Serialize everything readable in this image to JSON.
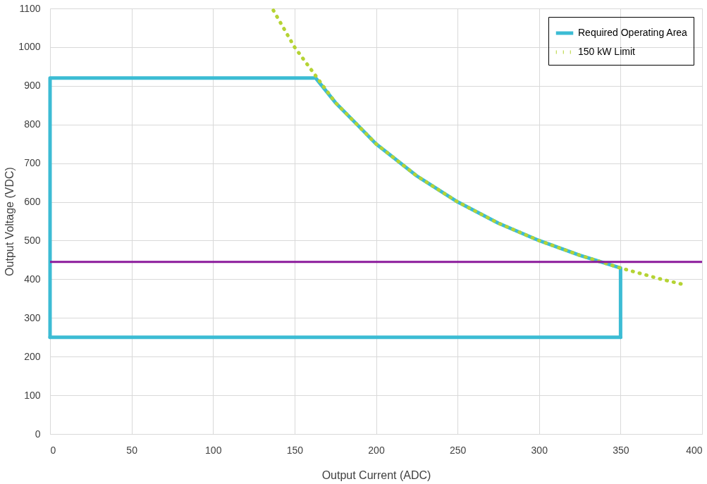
{
  "chart_data": {
    "type": "line",
    "xlabel": "Output Current (ADC)",
    "ylabel": "Output Voltage (VDC)",
    "xlim": [
      0,
      400
    ],
    "xticks": [
      0,
      50,
      100,
      150,
      200,
      250,
      300,
      350,
      400
    ],
    "ylim": [
      0,
      1100
    ],
    "yticks": [
      0,
      100,
      200,
      300,
      400,
      500,
      600,
      700,
      800,
      900,
      1000,
      1100
    ],
    "grid": true,
    "legend": "top right",
    "series": [
      {
        "name": "Required Operating Area",
        "color": "#3cbcd4",
        "line_style": "solid",
        "x": [
          0,
          0,
          163,
          175,
          200,
          225,
          250,
          275,
          300,
          325,
          350,
          350
        ],
        "values": [
          250,
          920,
          920,
          857,
          750,
          667,
          600,
          545,
          500,
          462,
          429,
          250
        ]
      },
      {
        "color": "#3cbcd4",
        "line_style": "solid",
        "x": [
          0,
          350
        ],
        "values": [
          250,
          250
        ]
      },
      {
        "name": "150 kW Limit",
        "color": "#b5d334",
        "line_style": "dotted",
        "x": [
          137,
          150,
          175,
          200,
          225,
          250,
          275,
          300,
          325,
          350,
          375,
          390
        ],
        "values": [
          1095,
          1000,
          857,
          750,
          667,
          600,
          545,
          500,
          462,
          429,
          400,
          385
        ]
      }
    ],
    "ref_lines": [
      {
        "axis": "y",
        "value": 445,
        "label": null,
        "color": "#8b1a9b",
        "line_style": "solid"
      }
    ]
  }
}
